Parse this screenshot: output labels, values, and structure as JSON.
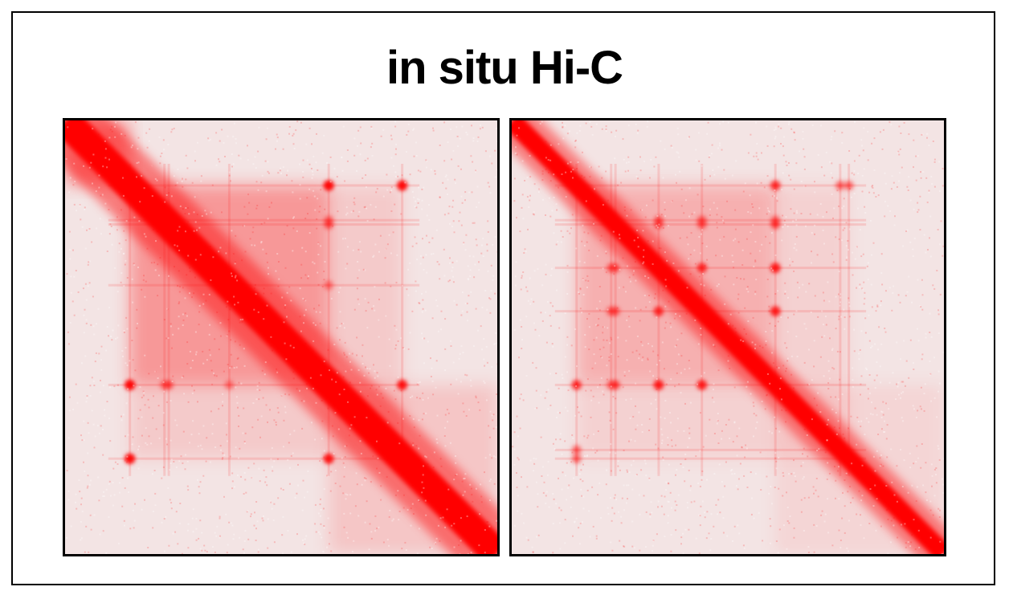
{
  "title": "in situ Hi-C",
  "colors": {
    "background": "#ffffff",
    "frame": "#000000",
    "heat_high": "#ff0000",
    "heat_low": "#f3f3f3"
  },
  "chart_data": [
    {
      "type": "heatmap",
      "title": "",
      "xlabel": "",
      "ylabel": "",
      "grid": false,
      "diagonal_strength": 1.0,
      "diagonal_width": 0.07,
      "domains": [
        {
          "start": 0.0,
          "end": 0.15,
          "strength": 0.75
        },
        {
          "start": 0.15,
          "end": 0.61,
          "strength": 0.55
        },
        {
          "start": 0.15,
          "end": 0.78,
          "strength": 0.25
        },
        {
          "start": 0.61,
          "end": 1.0,
          "strength": 0.3
        }
      ],
      "loops": [
        {
          "x": 0.61,
          "y": 0.15,
          "strength": 0.9
        },
        {
          "x": 0.78,
          "y": 0.15,
          "strength": 0.85
        },
        {
          "x": 0.15,
          "y": 0.61,
          "strength": 0.85
        },
        {
          "x": 0.24,
          "y": 0.61,
          "strength": 0.6
        },
        {
          "x": 0.78,
          "y": 0.61,
          "strength": 0.7
        },
        {
          "x": 0.15,
          "y": 0.78,
          "strength": 0.85
        },
        {
          "x": 0.61,
          "y": 0.78,
          "strength": 0.8
        },
        {
          "x": 0.61,
          "y": 0.23,
          "strength": 0.5
        },
        {
          "x": 0.61,
          "y": 0.38,
          "strength": 0.45
        }
      ]
    },
    {
      "type": "heatmap",
      "title": "",
      "xlabel": "",
      "ylabel": "",
      "grid": false,
      "diagonal_strength": 1.0,
      "diagonal_width": 0.045,
      "domains": [
        {
          "start": 0.15,
          "end": 0.61,
          "strength": 0.35
        },
        {
          "start": 0.15,
          "end": 0.78,
          "strength": 0.18
        },
        {
          "start": 0.61,
          "end": 1.0,
          "strength": 0.15
        }
      ],
      "loops": [
        {
          "x": 0.61,
          "y": 0.15,
          "strength": 0.6
        },
        {
          "x": 0.76,
          "y": 0.15,
          "strength": 0.6
        },
        {
          "x": 0.15,
          "y": 0.61,
          "strength": 0.55
        },
        {
          "x": 0.24,
          "y": 0.61,
          "strength": 0.7
        },
        {
          "x": 0.34,
          "y": 0.61,
          "strength": 0.75
        },
        {
          "x": 0.44,
          "y": 0.61,
          "strength": 0.7
        },
        {
          "x": 0.15,
          "y": 0.78,
          "strength": 0.6
        },
        {
          "x": 0.34,
          "y": 0.23,
          "strength": 0.55
        },
        {
          "x": 0.44,
          "y": 0.23,
          "strength": 0.55
        },
        {
          "x": 0.61,
          "y": 0.23,
          "strength": 0.55
        },
        {
          "x": 0.24,
          "y": 0.34,
          "strength": 0.6
        },
        {
          "x": 0.44,
          "y": 0.34,
          "strength": 0.55
        },
        {
          "x": 0.61,
          "y": 0.34,
          "strength": 0.6
        },
        {
          "x": 0.24,
          "y": 0.44,
          "strength": 0.55
        },
        {
          "x": 0.34,
          "y": 0.44,
          "strength": 0.6
        },
        {
          "x": 0.61,
          "y": 0.44,
          "strength": 0.6
        }
      ]
    }
  ]
}
